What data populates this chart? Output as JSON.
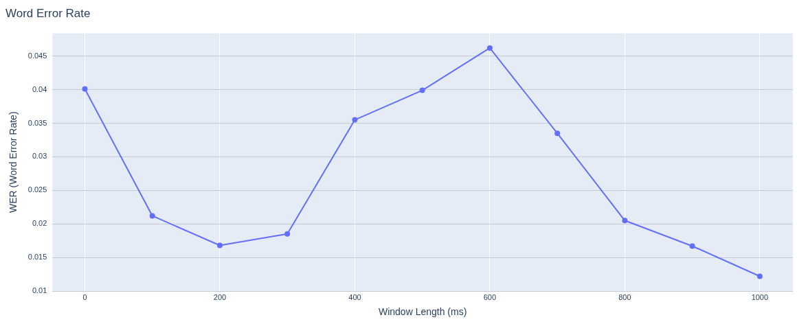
{
  "chart_data": {
    "type": "line",
    "title": "Word Error Rate",
    "xlabel": "Window Length (ms)",
    "ylabel": "WER (Word Error Rate)",
    "x": [
      0,
      100,
      200,
      300,
      400,
      500,
      600,
      700,
      800,
      900,
      1000
    ],
    "series": [
      {
        "color": "#636efa",
        "values": [
          0.0401,
          0.0212,
          0.0168,
          0.0185,
          0.0355,
          0.0399,
          0.0462,
          0.0335,
          0.0205,
          0.0167,
          0.0122
        ]
      }
    ],
    "xlim": [
      -48,
      1049
    ],
    "ylim": [
      0.01,
      0.0484
    ],
    "xticks": [
      0,
      200,
      400,
      600,
      800,
      1000
    ],
    "yticks": [
      0.01,
      0.015,
      0.02,
      0.025,
      0.03,
      0.035,
      0.04,
      0.045
    ],
    "grid": true,
    "legend": false,
    "marker": "circle",
    "line_style": "solid"
  }
}
